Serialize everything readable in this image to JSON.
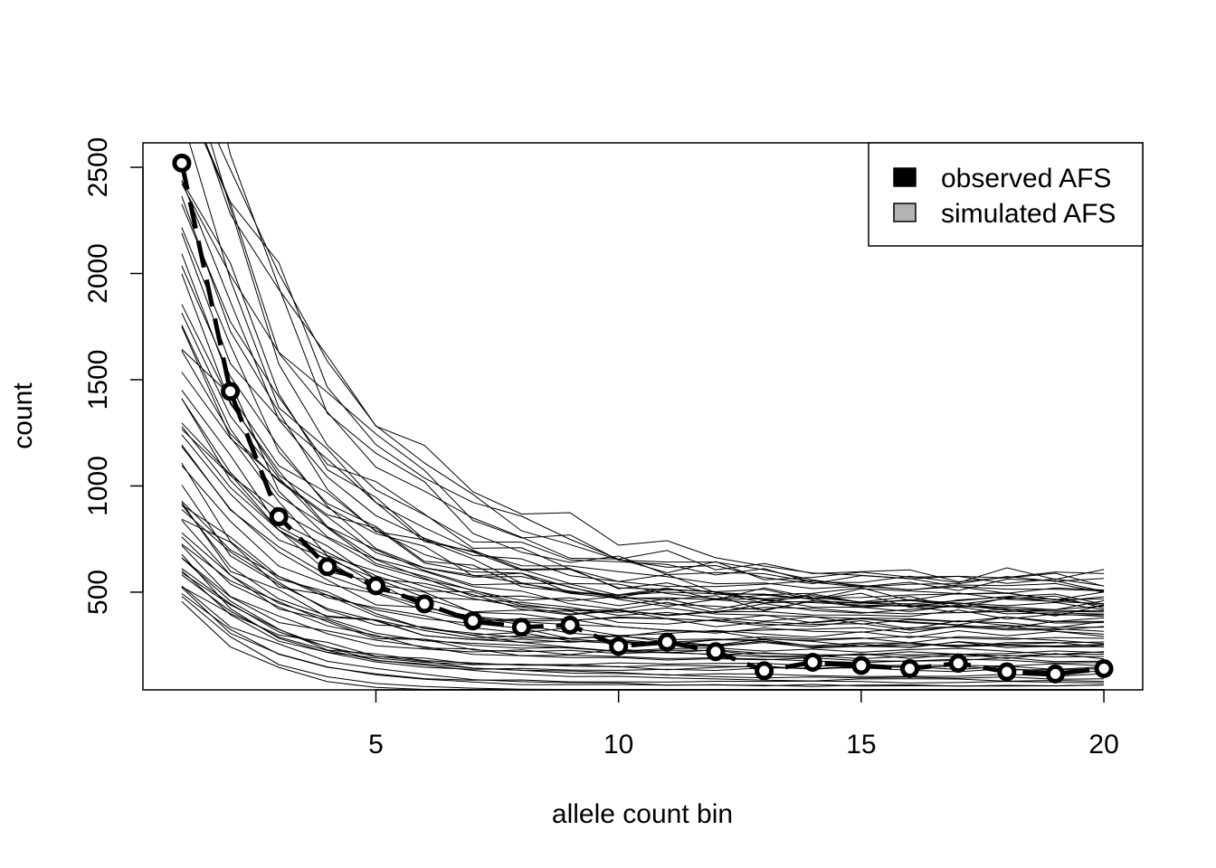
{
  "chart_data": {
    "type": "line",
    "title": "",
    "xlabel": "allele count bin",
    "ylabel": "count",
    "xlim": [
      0.2,
      20.8
    ],
    "ylim": [
      40,
      2615
    ],
    "x_ticks": [
      5,
      10,
      15,
      20
    ],
    "x_tick_labels": [
      "5",
      "10",
      "15",
      "20"
    ],
    "y_ticks": [
      500,
      1000,
      1500,
      2000,
      2500
    ],
    "y_tick_labels": [
      "500",
      "1000",
      "1500",
      "2000",
      "2500"
    ],
    "grid": false,
    "legend": {
      "position": "top-right",
      "entries": [
        {
          "label": "observed AFS",
          "color": "#000000"
        },
        {
          "label": "simulated AFS",
          "color": "#b3b3b3"
        }
      ]
    },
    "observed": {
      "name": "observed AFS",
      "x": [
        1,
        2,
        3,
        4,
        5,
        6,
        7,
        8,
        9,
        10,
        11,
        12,
        13,
        14,
        15,
        16,
        17,
        18,
        19,
        20
      ],
      "values": [
        2520,
        1445,
        855,
        620,
        530,
        445,
        365,
        335,
        345,
        245,
        265,
        220,
        130,
        170,
        155,
        140,
        165,
        125,
        115,
        140
      ]
    },
    "simulated": {
      "count": 60,
      "x": [
        1,
        2,
        3,
        4,
        5,
        6,
        7,
        8,
        9,
        10,
        11,
        12,
        13,
        14,
        15,
        16,
        17,
        18,
        19,
        20
      ],
      "shape_note": "individual simulated spectra; fan ranges from ~460 to well above 2600 at bin 1, tapering to ~50-650 at bin 20"
    }
  }
}
